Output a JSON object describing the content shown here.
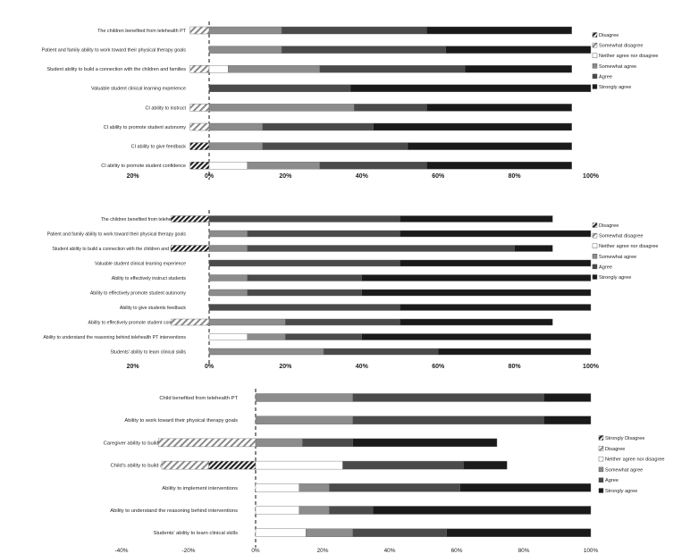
{
  "colors": {
    "strongly_disagree": "#5a5a5a",
    "disagree": "#a8a8a8",
    "somewhat_disagree": "#c8c8c8",
    "neither": "#ffffff",
    "somewhat_agree": "#8c8c8c",
    "agree": "#4a4a4a",
    "strongly_agree": "#1a1a1a",
    "axis": "#222222"
  },
  "chart_data": [
    {
      "type": "bar",
      "stacked": true,
      "orientation": "horizontal",
      "xlim": [
        -20,
        100
      ],
      "x_ticks": [
        "20%",
        "0%",
        "20%",
        "40%",
        "60%",
        "80%",
        "100%"
      ],
      "x_tick_values": [
        -20,
        0,
        20,
        40,
        60,
        80,
        100
      ],
      "legend": [
        "Disagree",
        "Somewhat disagree",
        "Neither agree nor disagree",
        "Somewhat agree",
        "Agree",
        "Strongly agree"
      ],
      "legend_position": "right",
      "categories": [
        "The children benefited from telehealth PT",
        "Patient and family ability to work toward their physical therapy goals",
        "Student ability  to build a connection with the children and families",
        "Valuable student clinical learning experience",
        "CI ability to instruct",
        "CI ability to promote student autonomy",
        "CI ability to give feedback",
        "CI ability to promote student confidence"
      ],
      "series": [
        {
          "name": "Disagree",
          "values": [
            0,
            0,
            0,
            0,
            0,
            0,
            5,
            5
          ],
          "side": "negative"
        },
        {
          "name": "Somewhat disagree",
          "values": [
            5,
            0,
            5,
            0,
            5,
            5,
            0,
            0
          ],
          "side": "negative"
        },
        {
          "name": "Neither agree nor disagree",
          "values": [
            0,
            0,
            5,
            0,
            0,
            0,
            0,
            10
          ]
        },
        {
          "name": "Somewhat agree",
          "values": [
            19,
            19,
            24,
            0,
            38,
            14,
            14,
            19
          ]
        },
        {
          "name": "Agree",
          "values": [
            38,
            43,
            38,
            37,
            19,
            29,
            38,
            28
          ]
        },
        {
          "name": "Strongly agree",
          "values": [
            38,
            38,
            28,
            63,
            38,
            52,
            43,
            38
          ]
        }
      ]
    },
    {
      "type": "bar",
      "stacked": true,
      "orientation": "horizontal",
      "xlim": [
        -20,
        100
      ],
      "x_ticks": [
        "20%",
        "0%",
        "20%",
        "40%",
        "60%",
        "80%",
        "100%"
      ],
      "x_tick_values": [
        -20,
        0,
        20,
        40,
        60,
        80,
        100
      ],
      "legend": [
        "Disagree",
        "Somewhat disagree",
        "Neither agree nor disagree",
        "Somewhat agree",
        "Agree",
        "Strongly agree"
      ],
      "legend_position": "right",
      "categories": [
        "The children benefited from telehealth PT",
        "Patient and family ability to work toward their physical therapy goals",
        "Student ability  to build a connection with the children and families",
        "Valuable student clinical learning experience",
        "Ability to effectively instruct students",
        "Ability to effectively promote student autonomy",
        "Ability to give students feedback",
        "Ability to effectively promote student confidence",
        "Ability to understand the reasoning behind telehealth PT interventions",
        "Students' ability to learn clinical skills"
      ],
      "series": [
        {
          "name": "Disagree",
          "values": [
            10,
            0,
            10,
            0,
            0,
            0,
            0,
            0,
            0,
            0
          ],
          "side": "negative"
        },
        {
          "name": "Somewhat disagree",
          "values": [
            0,
            0,
            0,
            0,
            0,
            0,
            0,
            10,
            0,
            0
          ],
          "side": "negative"
        },
        {
          "name": "Neither agree nor disagree",
          "values": [
            0,
            0,
            0,
            0,
            0,
            0,
            0,
            0,
            10,
            0
          ]
        },
        {
          "name": "Somewhat agree",
          "values": [
            0,
            10,
            10,
            0,
            10,
            10,
            0,
            20,
            10,
            30
          ]
        },
        {
          "name": "Agree",
          "values": [
            50,
            40,
            70,
            50,
            30,
            30,
            50,
            30,
            20,
            30
          ]
        },
        {
          "name": "Strongly agree",
          "values": [
            40,
            50,
            10,
            50,
            60,
            60,
            50,
            40,
            60,
            40
          ]
        }
      ]
    },
    {
      "type": "bar",
      "stacked": true,
      "orientation": "horizontal",
      "xlim": [
        -40,
        100
      ],
      "x_ticks": [
        "-40%",
        "-20%",
        "0%",
        "20%",
        "40%",
        "60%",
        "80%",
        "100%"
      ],
      "x_tick_values": [
        -40,
        -20,
        0,
        20,
        40,
        60,
        80,
        100
      ],
      "legend": [
        "Strongly Disagree",
        "Disagree",
        "Neither agree nor disagree",
        "Somewhat agree",
        "Agree",
        "Strongly agree"
      ],
      "legend_position": "right",
      "categories": [
        "Child benefited from telehealth PT",
        "Ability to work toward their physical therapy goals",
        "Caregiver ability  to build a connection with the PT students",
        "Child's ability  to build a connection with the PT students",
        "Ability to implement interventions",
        "Ability to understand the reasoning behind interventions",
        "Students' ability to learn clinical skills"
      ],
      "series": [
        {
          "name": "Strongly Disagree",
          "values": [
            0,
            0,
            0,
            14,
            0,
            0,
            0
          ],
          "side": "negative"
        },
        {
          "name": "Disagree",
          "values": [
            0,
            0,
            29,
            14,
            0,
            0,
            0
          ],
          "side": "negative"
        },
        {
          "name": "Neither agree nor disagree",
          "values": [
            0,
            0,
            0,
            26,
            13,
            13,
            15
          ]
        },
        {
          "name": "Somewhat agree",
          "values": [
            29,
            29,
            14,
            0,
            9,
            9,
            14
          ]
        },
        {
          "name": "Agree",
          "values": [
            57,
            57,
            15,
            36,
            39,
            13,
            28
          ]
        },
        {
          "name": "Strongly agree",
          "values": [
            14,
            14,
            43,
            13,
            39,
            65,
            43
          ]
        }
      ]
    }
  ]
}
